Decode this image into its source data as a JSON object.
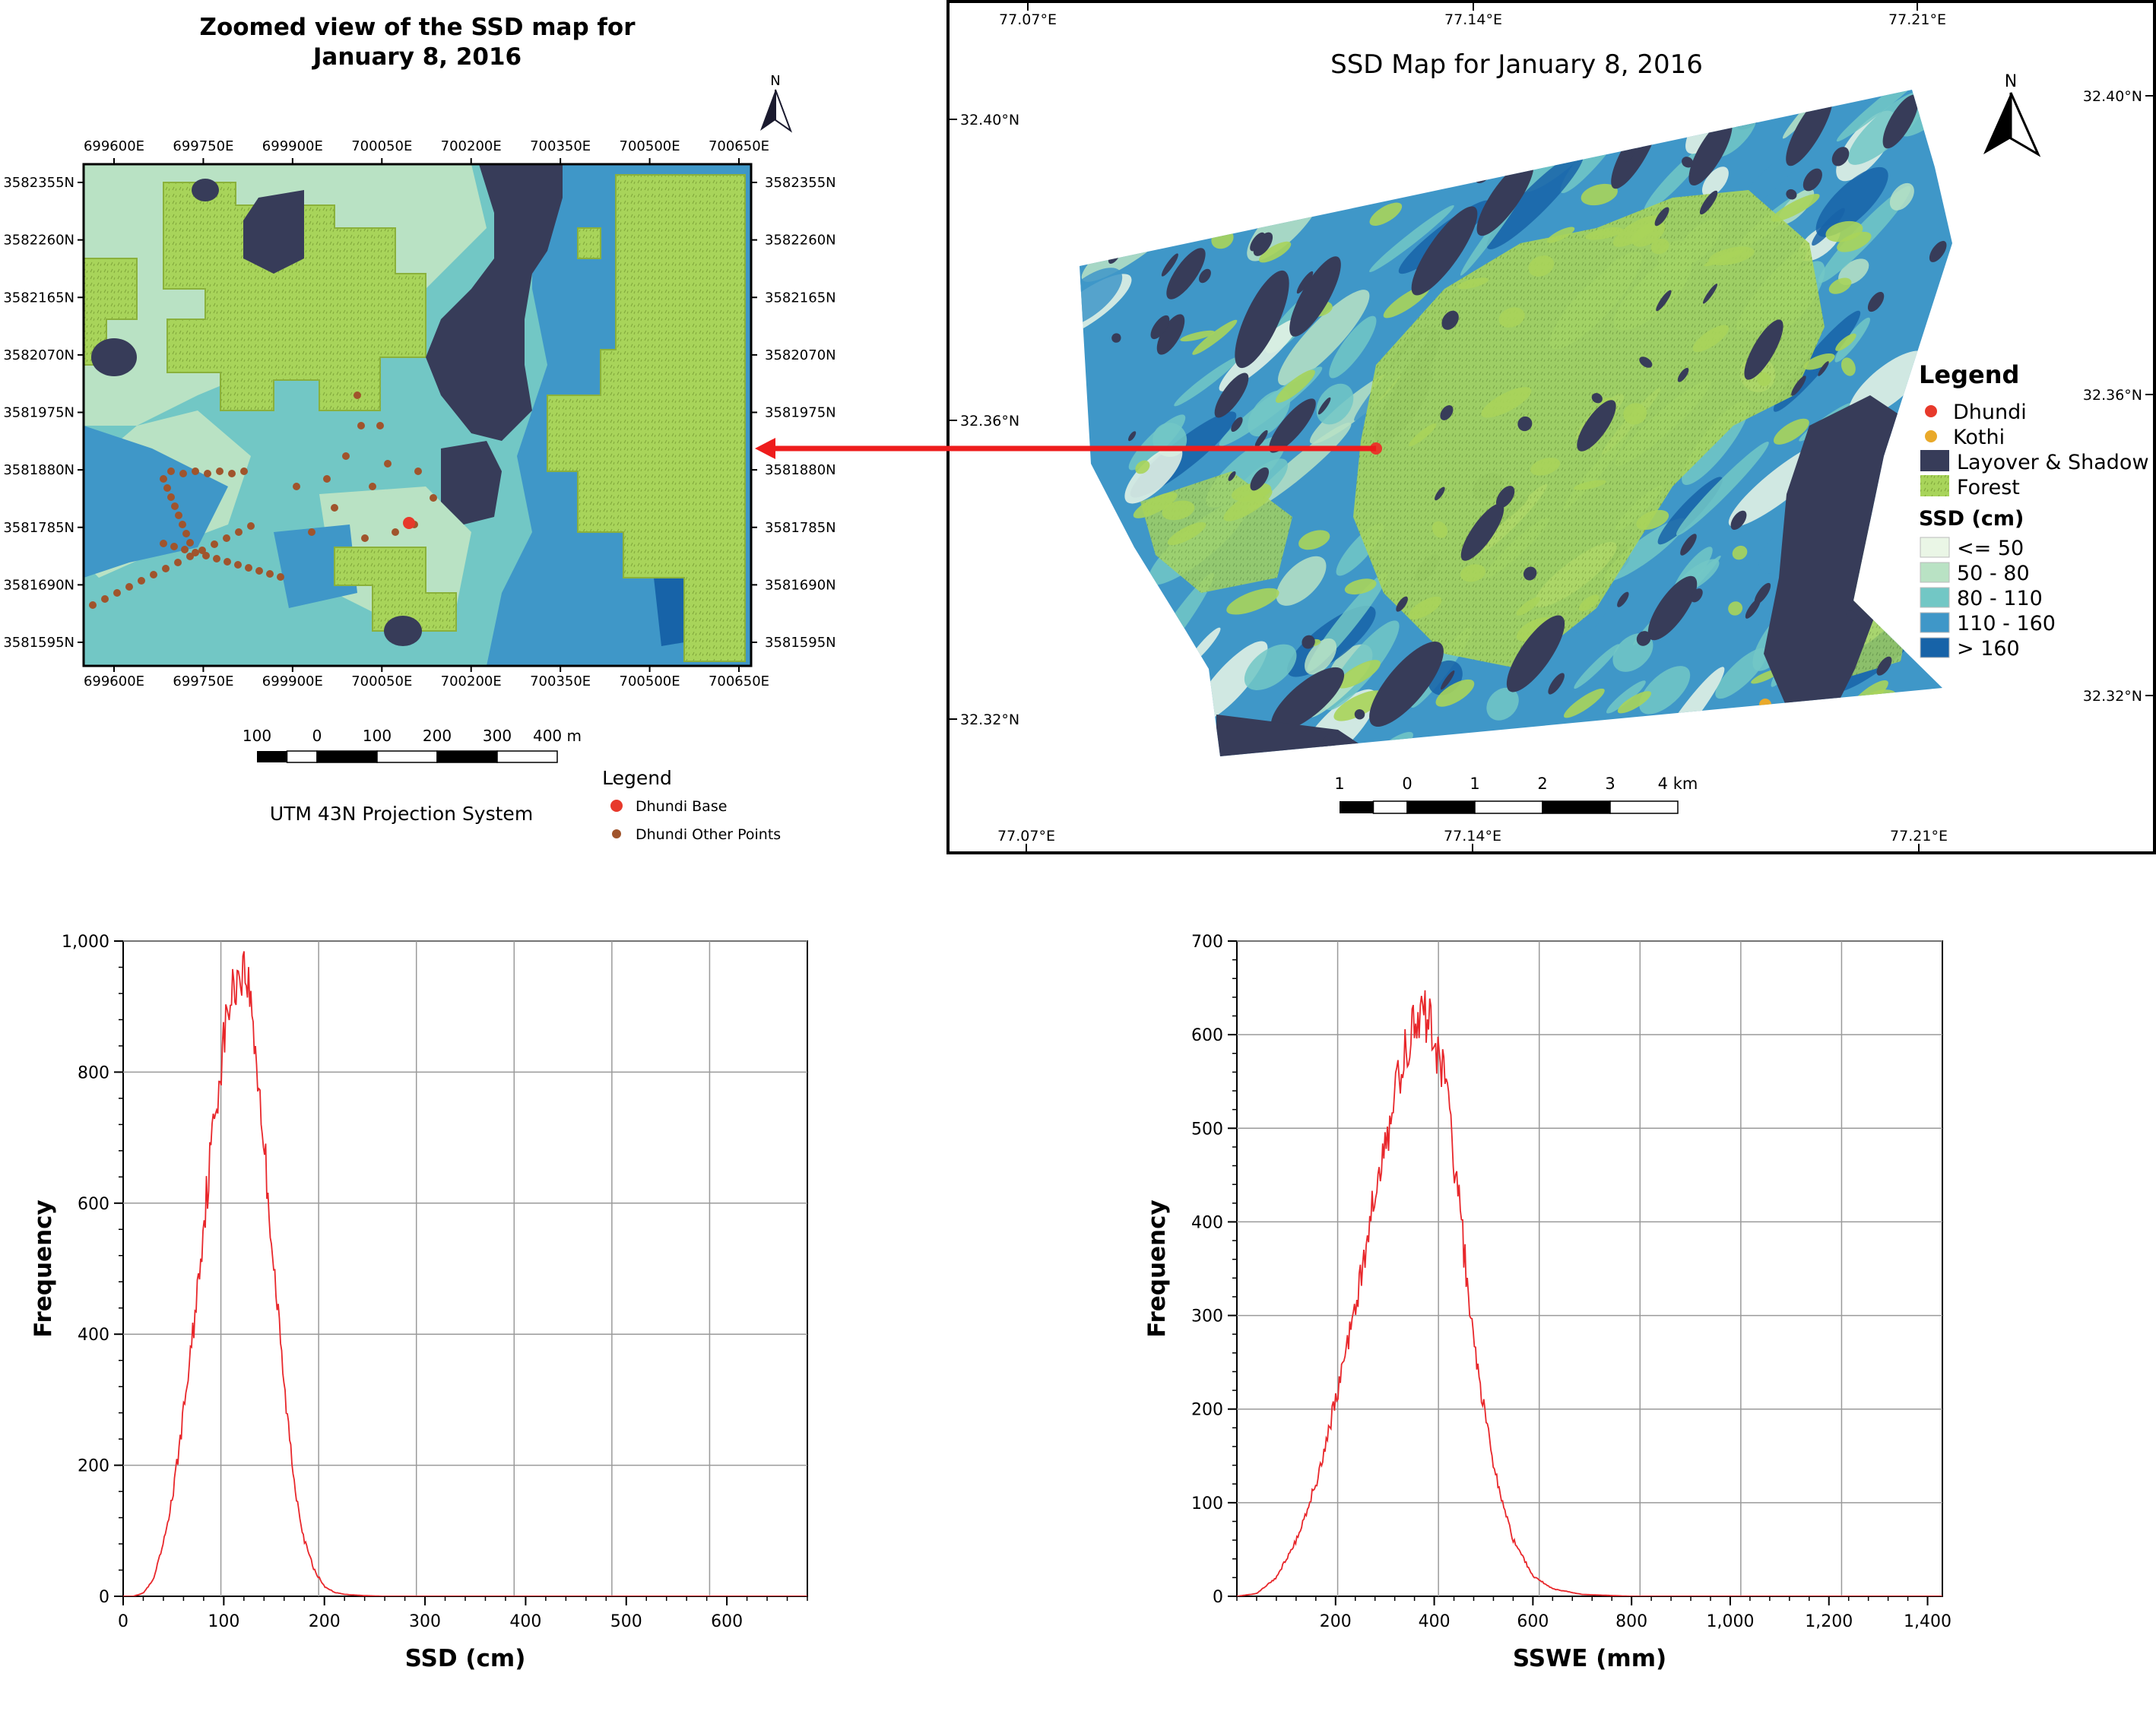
{
  "colors": {
    "ssd_le50": "#eaf6e6",
    "ssd_50_80": "#b9e2c4",
    "ssd_80_110": "#72c7c5",
    "ssd_110_160": "#3f97c8",
    "ssd_gt160": "#1763a8",
    "layover_shadow": "#373c59",
    "forest": "#a8d45a",
    "forest_edge": "#8ab13c",
    "dhundi": "#e7392b",
    "kothi": "#e9a92a",
    "other_points": "#a0542c",
    "arrow": "#ee1c1c",
    "histogram_line": "#e8272b",
    "grid": "#999999"
  },
  "zoom_map": {
    "title_line1": "Zoomed view of the SSD map for",
    "title_line2": "January 8, 2016",
    "north": "N",
    "x_ticks": [
      "699600E",
      "699750E",
      "699900E",
      "700050E",
      "700200E",
      "700350E",
      "700500E",
      "700650E"
    ],
    "y_ticks": [
      "3582355N",
      "3582260N",
      "3582165N",
      "3582070N",
      "3581975N",
      "3581880N",
      "3581785N",
      "3581690N",
      "3581595N"
    ],
    "scale_labels": [
      "100",
      "0",
      "100",
      "200",
      "300",
      "400 m"
    ],
    "projection": "UTM 43N Projection System",
    "legend_title": "Legend",
    "legend_items": [
      {
        "label": "Dhundi Base",
        "color": "#e7392b"
      },
      {
        "label": "Dhundi Other Points",
        "color": "#a0542c"
      }
    ]
  },
  "main_map": {
    "title": "SSD Map for January 8, 2016",
    "north": "N",
    "top_lon_ticks": [
      "77.07°E",
      "77.14°E",
      "77.21°E"
    ],
    "bottom_lon_ticks": [
      "77.07°E",
      "77.14°E",
      "77.21°E"
    ],
    "left_lat_ticks": [
      "32.40°N",
      "32.36°N",
      "32.32°N"
    ],
    "right_lat_ticks": [
      "32.40°N",
      "32.36°N",
      "32.32°N"
    ],
    "scale_labels": [
      "1",
      "0",
      "1",
      "2",
      "3",
      "4 km"
    ],
    "legend": {
      "title": "Legend",
      "points": [
        {
          "label": "Dhundi",
          "color": "#e7392b"
        },
        {
          "label": "Kothi",
          "color": "#e9a92a"
        }
      ],
      "layover_label": "Layover & Shadow",
      "forest_label": "Forest",
      "ssd_title": "SSD (cm)",
      "ssd_classes": [
        {
          "label": "<= 50",
          "color": "#eaf6e6"
        },
        {
          "label": "50 - 80",
          "color": "#b9e2c4"
        },
        {
          "label": "80 - 110",
          "color": "#72c7c5"
        },
        {
          "label": "110 - 160",
          "color": "#3f97c8"
        },
        {
          "label": "> 160",
          "color": "#1763a8"
        }
      ]
    }
  },
  "chart_data": [
    {
      "type": "line",
      "title": "",
      "xlabel": "SSD (cm)",
      "ylabel": "Frequency",
      "xlim": [
        0,
        680
      ],
      "ylim": [
        0,
        1000
      ],
      "xticks": [
        0,
        100,
        200,
        300,
        400,
        500,
        600
      ],
      "yticks": [
        0,
        200,
        400,
        600,
        800,
        1000
      ],
      "ytick_labels": [
        "0",
        "200",
        "400",
        "600",
        "800",
        "1,000"
      ],
      "grid": true,
      "series": [
        {
          "values_x": [
            0,
            10,
            20,
            30,
            40,
            50,
            60,
            70,
            80,
            90,
            100,
            105,
            110,
            115,
            120,
            125,
            130,
            140,
            150,
            160,
            170,
            180,
            190,
            200,
            210,
            220,
            240,
            260,
            300,
            400,
            500,
            600,
            680
          ],
          "values_y": [
            0,
            0,
            5,
            25,
            80,
            160,
            280,
            410,
            570,
            720,
            850,
            900,
            930,
            950,
            960,
            930,
            860,
            690,
            500,
            320,
            175,
            85,
            40,
            15,
            6,
            3,
            1,
            0,
            0,
            0,
            0,
            0,
            0
          ]
        }
      ]
    },
    {
      "type": "line",
      "title": "",
      "xlabel": "SSWE (mm)",
      "ylabel": "Frequency",
      "xlim": [
        0,
        1430
      ],
      "ylim": [
        0,
        700
      ],
      "xticks": [
        200,
        400,
        600,
        800,
        1000,
        1200,
        1400
      ],
      "xtick_labels": [
        "200",
        "400",
        "600",
        "800",
        "1,000",
        "1,200",
        "1,400"
      ],
      "yticks": [
        0,
        100,
        200,
        300,
        400,
        500,
        600,
        700
      ],
      "grid": true,
      "series": [
        {
          "values_x": [
            0,
            40,
            80,
            120,
            160,
            200,
            240,
            280,
            300,
            320,
            340,
            360,
            380,
            400,
            420,
            440,
            460,
            480,
            520,
            560,
            600,
            640,
            700,
            800,
            1000,
            1200,
            1400
          ],
          "values_y": [
            0,
            3,
            20,
            60,
            120,
            210,
            310,
            430,
            480,
            530,
            580,
            610,
            620,
            600,
            560,
            470,
            370,
            270,
            140,
            60,
            22,
            8,
            2,
            0,
            0,
            0,
            0
          ]
        }
      ]
    }
  ]
}
